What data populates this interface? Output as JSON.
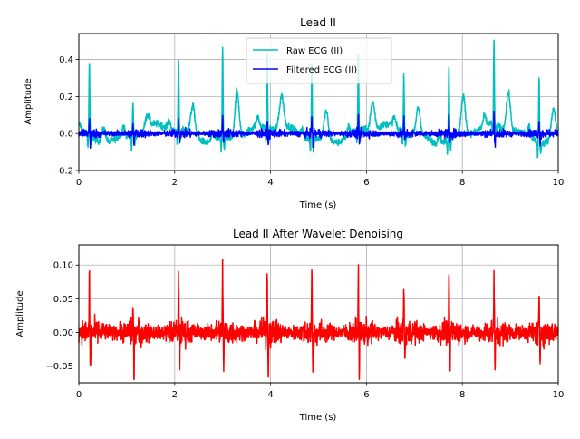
{
  "chart_data": [
    {
      "type": "line",
      "title": "Lead II",
      "xlabel": "Time (s)",
      "ylabel": "Amplitude",
      "xlim": [
        0,
        10
      ],
      "ylim": [
        -0.2,
        0.54
      ],
      "x_ticks": [
        0,
        2,
        4,
        6,
        8,
        10
      ],
      "y_ticks": [
        -0.2,
        0.0,
        0.2,
        0.4
      ],
      "x_tick_labels": [
        "0",
        "2",
        "4",
        "6",
        "8",
        "10"
      ],
      "y_tick_labels": [
        "−0.2",
        "0.0",
        "0.2",
        "0.4"
      ],
      "grid": true,
      "legend_position": "top-center",
      "r_peaks": [
        0.22,
        1.13,
        2.08,
        3.0,
        3.93,
        4.86,
        5.83,
        6.78,
        7.72,
        8.66,
        9.6
      ],
      "series": [
        {
          "name": "Raw ECG (II)",
          "color": "#00bfbf",
          "peak_values": [
            0.42,
            0.2,
            0.41,
            0.51,
            0.42,
            0.44,
            0.44,
            0.34,
            0.42,
            0.47,
            0.37
          ],
          "t_wave_values": [
            0.08,
            0.07,
            0.15,
            0.26,
            0.17,
            0.15,
            0.15,
            0.15,
            0.2,
            0.21,
            0.16
          ],
          "baseline_range": [
            -0.17,
            0.06
          ]
        },
        {
          "name": "Filtered ECG (II)",
          "color": "#0000ff",
          "peak_values": [
            0.1,
            0.06,
            0.09,
            0.12,
            0.1,
            0.11,
            0.1,
            0.09,
            0.1,
            0.12,
            0.09
          ],
          "trough_values": [
            -0.06,
            -0.06,
            -0.05,
            -0.05,
            -0.06,
            -0.06,
            -0.05,
            -0.05,
            -0.05,
            -0.06,
            -0.05
          ],
          "noise_amplitude": 0.025
        }
      ]
    },
    {
      "type": "line",
      "title": "Lead II After Wavelet Denoising",
      "xlabel": "Time (s)",
      "ylabel": "Amplitude",
      "xlim": [
        0,
        10
      ],
      "ylim": [
        -0.075,
        0.13
      ],
      "x_ticks": [
        0,
        2,
        4,
        6,
        8,
        10
      ],
      "y_ticks": [
        -0.05,
        0.0,
        0.05,
        0.1
      ],
      "x_tick_labels": [
        "0",
        "2",
        "4",
        "6",
        "8",
        "10"
      ],
      "y_tick_labels": [
        "−0.05",
        "0.00",
        "0.05",
        "0.10"
      ],
      "grid": true,
      "r_peaks": [
        0.22,
        1.13,
        2.08,
        3.0,
        3.93,
        4.86,
        5.83,
        6.78,
        7.72,
        8.66,
        9.6
      ],
      "series": [
        {
          "color": "#ff0000",
          "peak_values": [
            0.1,
            0.05,
            0.1,
            0.12,
            0.1,
            0.11,
            0.1,
            0.09,
            0.09,
            0.1,
            0.07
          ],
          "trough_values": [
            -0.065,
            -0.064,
            -0.055,
            -0.055,
            -0.065,
            -0.065,
            -0.055,
            -0.05,
            -0.05,
            -0.065,
            -0.06
          ],
          "noise_amplitude": 0.02
        }
      ]
    }
  ]
}
